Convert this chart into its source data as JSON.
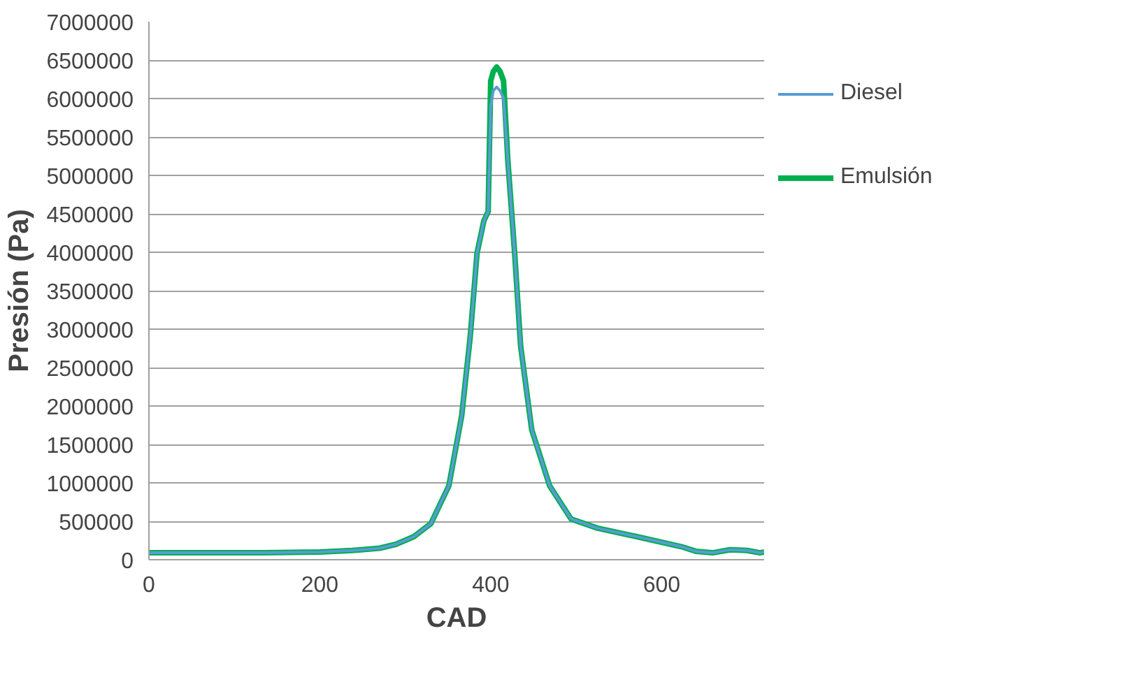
{
  "chart_data": {
    "type": "line",
    "xlabel": "CAD",
    "ylabel": "Presión (Pa)",
    "xlim": [
      0,
      720
    ],
    "xticks": [
      0,
      200,
      400,
      600
    ],
    "ylim": [
      0,
      7000000
    ],
    "yticks": [
      0,
      500000,
      1000000,
      1500000,
      2000000,
      2500000,
      3000000,
      3500000,
      4000000,
      4500000,
      5000000,
      5500000,
      6000000,
      6500000,
      7000000
    ],
    "grid": "y",
    "legend": "right",
    "marker": "none",
    "line_style": "solid",
    "x": [
      0,
      50,
      135,
      200,
      238,
      270,
      289,
      310,
      330,
      351,
      366,
      376,
      384,
      392,
      397,
      400,
      403,
      407,
      411,
      415,
      420,
      428,
      435,
      448,
      469,
      494,
      525,
      571,
      623,
      640,
      660,
      680,
      700,
      715,
      720
    ],
    "series": [
      {
        "name": "Diesel",
        "color": "#5b9bd5",
        "values": [
          90000,
          90000,
          90000,
          100000,
          120000,
          150000,
          200000,
          300000,
          470000,
          960000,
          1870000,
          2900000,
          3990000,
          4410000,
          4530000,
          5900000,
          6100000,
          6150000,
          6100000,
          6000000,
          5200000,
          3990000,
          2780000,
          1690000,
          960000,
          530000,
          410000,
          300000,
          170000,
          110000,
          90000,
          130000,
          120000,
          90000,
          100000
        ]
      },
      {
        "name": "Emulsión",
        "color": "#00b050",
        "values": [
          90000,
          90000,
          90000,
          100000,
          120000,
          150000,
          200000,
          300000,
          470000,
          960000,
          1870000,
          2900000,
          3990000,
          4410000,
          4530000,
          6230000,
          6350000,
          6410000,
          6350000,
          6230000,
          5200000,
          3990000,
          2780000,
          1690000,
          960000,
          530000,
          410000,
          300000,
          170000,
          110000,
          90000,
          130000,
          120000,
          90000,
          100000
        ]
      }
    ]
  }
}
